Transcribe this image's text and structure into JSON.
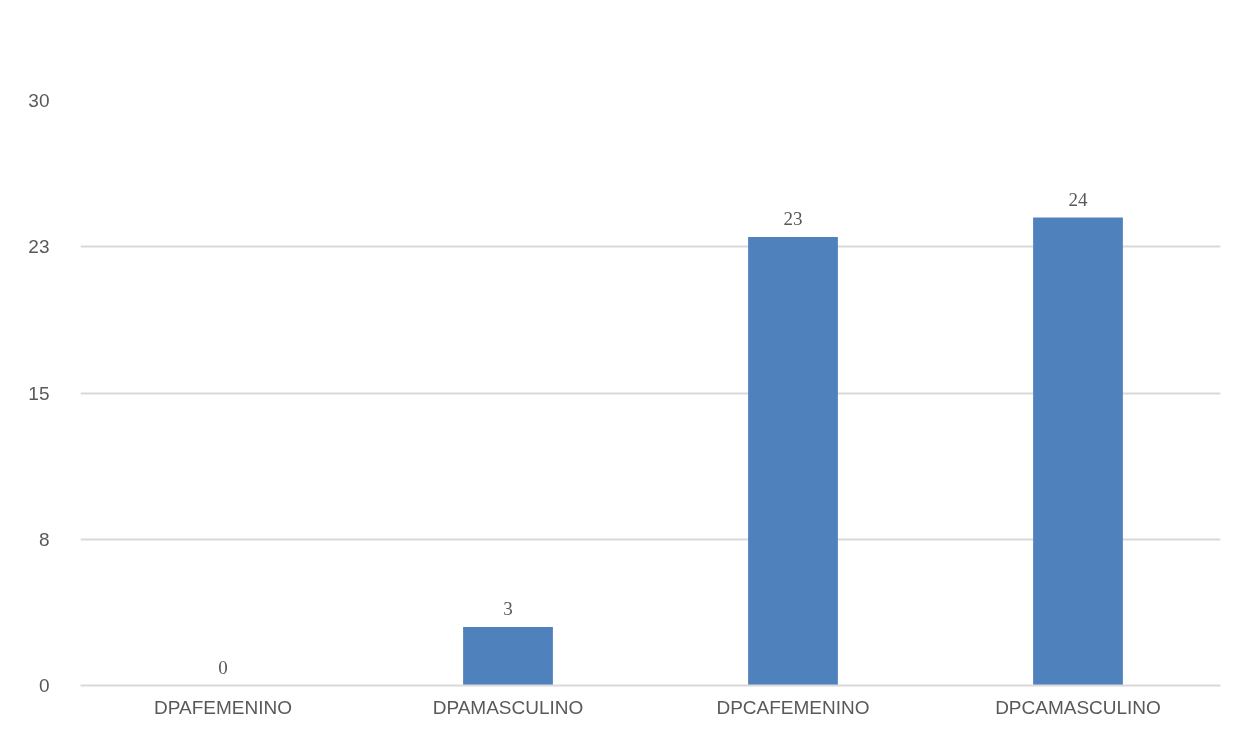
{
  "chart_data": {
    "type": "bar",
    "categories": [
      "DPAFEMENINO",
      "DPAMASCULINO",
      "DPCAFEMENINO",
      "DPCAMASCULINO"
    ],
    "values": [
      0,
      3,
      23,
      24
    ],
    "color": "#4f81bd",
    "ylim": [
      0,
      30
    ],
    "yticks": [
      0,
      {
        "value": 7.5,
        "label": "8"
      },
      15,
      {
        "value": 22.5,
        "label": "23"
      },
      30
    ],
    "grid": "y",
    "data_labels": true
  }
}
